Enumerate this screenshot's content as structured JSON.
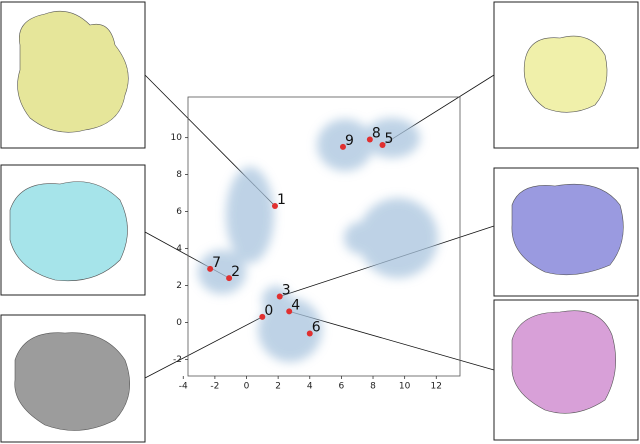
{
  "chart_data": {
    "type": "scatter",
    "labels": [
      "0",
      "1",
      "2",
      "3",
      "4",
      "5",
      "6",
      "7",
      "8",
      "9"
    ],
    "x": [
      1.0,
      1.8,
      -1.1,
      2.1,
      2.7,
      8.6,
      4.0,
      -2.3,
      7.8,
      6.1
    ],
    "y": [
      0.3,
      6.3,
      2.4,
      1.4,
      0.6,
      9.6,
      -0.6,
      2.9,
      9.9,
      9.5
    ],
    "color": "#e03030",
    "xlim": [
      -3.7,
      13.5
    ],
    "ylim": [
      -2.9,
      12.2
    ],
    "xticks": [
      -4,
      -2,
      0,
      2,
      4,
      6,
      8,
      10,
      12
    ],
    "yticks": [
      -2,
      0,
      2,
      4,
      6,
      8,
      10
    ]
  }
}
